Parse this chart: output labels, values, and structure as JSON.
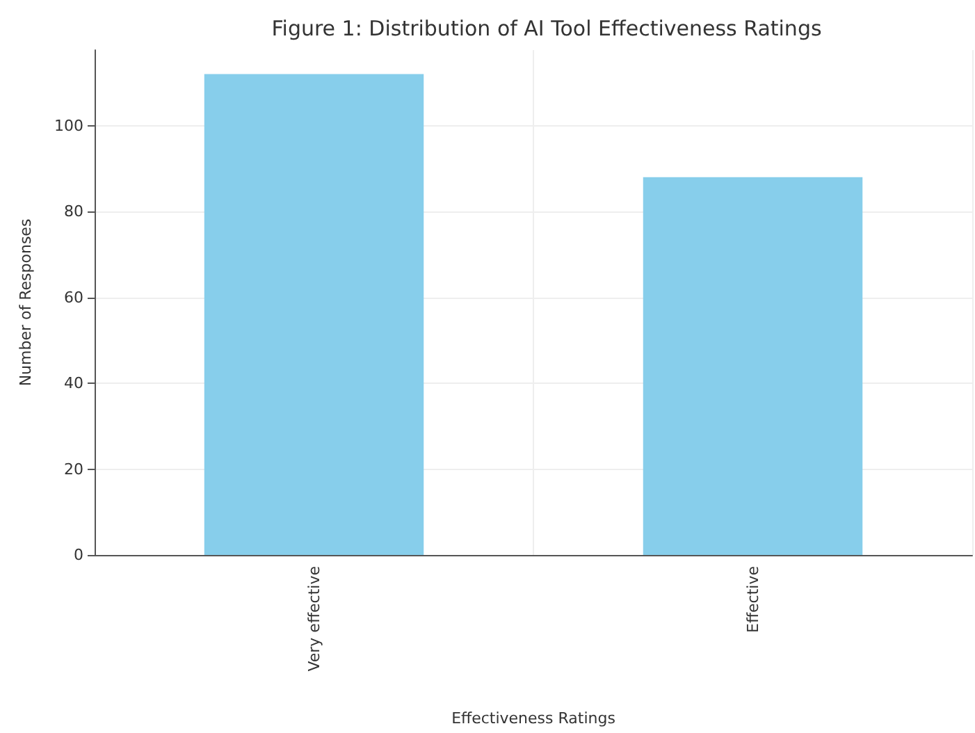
{
  "chart_data": {
    "type": "bar",
    "title": "Figure 1: Distribution of AI Tool Effectiveness Ratings",
    "xlabel": "Effectiveness Ratings",
    "ylabel": "Number of Responses",
    "categories": [
      "Very effective",
      "Effective"
    ],
    "values": [
      112,
      88
    ],
    "color": "#87ceeb",
    "ylim": [
      0,
      117.6
    ],
    "yticks": [
      0,
      20,
      40,
      60,
      80,
      100
    ],
    "grid": true
  }
}
